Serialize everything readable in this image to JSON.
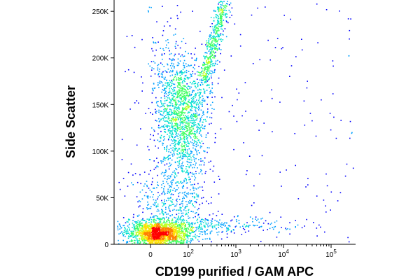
{
  "chart_data": {
    "type": "scatter",
    "subtype": "flow-cytometry-density-dot-plot",
    "title": "",
    "xlabel": "CD199 purified / GAM APC",
    "ylabel": "Side Scatter",
    "xscale": "biexponential",
    "xlim": [
      -60,
      200000
    ],
    "ylim": [
      0,
      262144
    ],
    "x_ticks": [
      {
        "value": 0,
        "label": "0",
        "exp": ""
      },
      {
        "value": 100,
        "label": "10",
        "exp": "2"
      },
      {
        "value": 1000,
        "label": "10",
        "exp": "3"
      },
      {
        "value": 10000,
        "label": "10",
        "exp": "4"
      },
      {
        "value": 100000,
        "label": "10",
        "exp": "5"
      }
    ],
    "y_ticks": [
      {
        "value": 0,
        "label": "0"
      },
      {
        "value": 50000,
        "label": "50K"
      },
      {
        "value": 100000,
        "label": "100K"
      },
      {
        "value": 150000,
        "label": "150K"
      },
      {
        "value": 200000,
        "label": "200K"
      },
      {
        "value": 250000,
        "label": "250K"
      }
    ],
    "colormap": [
      "#0000ff",
      "#00a0ff",
      "#00e0d0",
      "#40ff60",
      "#c0ff20",
      "#ffe000",
      "#ff8000",
      "#ff0000"
    ],
    "grid": false,
    "populations": [
      {
        "x_center": 20,
        "y_center": 12000,
        "count": 1600
      },
      {
        "x_center": 80,
        "y_center": 140000,
        "count": 1500
      },
      {
        "x_center": 60,
        "y_center": 40000,
        "count": 600
      },
      {
        "x_center": 200,
        "y_center": 20000,
        "count": 300
      },
      {
        "x_center": 600,
        "y_center": 220000,
        "count": 500
      }
    ]
  }
}
